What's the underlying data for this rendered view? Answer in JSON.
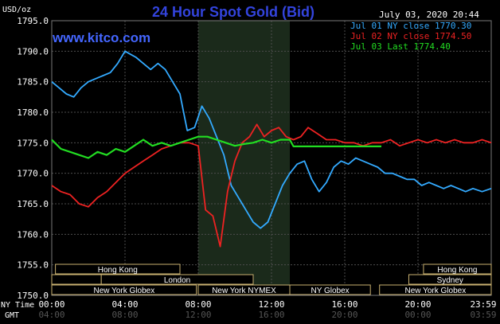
{
  "header": {
    "currency": "USD/oz",
    "title": "24 Hour Spot Gold (Bid)",
    "date": "July 03, 2020 20:44",
    "site": "www.kitco.com"
  },
  "legend": [
    {
      "label": "Jul 01 NY close 1770.30",
      "color": "#33aaff"
    },
    {
      "label": "Jul 02 NY close 1774.50",
      "color": "#ee2222"
    },
    {
      "label": "Jul 03 Last 1774.40",
      "color": "#22dd22"
    }
  ],
  "axis_labels": {
    "ny_time": "NY Time",
    "gmt": "GMT"
  },
  "sessions": {
    "row1": [
      "Hong Kong",
      "Hong Kong"
    ],
    "row2": [
      "London",
      "Sydney"
    ],
    "row3": [
      "New York Globex",
      "New York NYMEX",
      "NY Globex",
      "New York Globex"
    ]
  },
  "colors": {
    "background": "#000000",
    "grid": "#4d4d4d",
    "highlight": "#1b2a1b",
    "title": "#3344dd",
    "site": "#4466ff",
    "session_border": "#c8b070",
    "text": "#ffffff"
  },
  "chart_data": {
    "type": "line",
    "title": "24 Hour Spot Gold (Bid)",
    "xlabel": "NY Time",
    "ylabel": "USD/oz",
    "ylim": [
      1750,
      1795
    ],
    "xlim": [
      0,
      24
    ],
    "grid": true,
    "legend_position": "top-right",
    "yticks": [
      "1750.0",
      "1755.0",
      "1760.0",
      "1765.0",
      "1770.0",
      "1775.0",
      "1780.0",
      "1785.0",
      "1790.0",
      "1795.0"
    ],
    "xticks_ny": [
      "00:00",
      "04:00",
      "08:00",
      "12:00",
      "16:00",
      "20:00",
      "23:59"
    ],
    "xticks_gmt": [
      "04:00",
      "08:00",
      "12:00",
      "16:00",
      "20:00",
      "00:00",
      "03:59"
    ],
    "highlight_x": [
      8,
      13
    ],
    "series": [
      {
        "name": "Jul 01 NY close 1770.30",
        "color": "#33aaff",
        "x": [
          0,
          0.4,
          0.8,
          1.2,
          1.6,
          2,
          2.4,
          2.8,
          3.2,
          3.6,
          4,
          4.3,
          4.6,
          5,
          5.4,
          5.8,
          6.2,
          6.6,
          7,
          7.4,
          7.8,
          8.2,
          8.6,
          9,
          9.4,
          9.8,
          10.2,
          10.6,
          11,
          11.4,
          11.8,
          12.2,
          12.6,
          13,
          13.4,
          13.8,
          14.2,
          14.6,
          15,
          15.4,
          15.8,
          16.2,
          16.6,
          17,
          17.4,
          17.8,
          18.2,
          18.6,
          19,
          19.4,
          19.8,
          20.2,
          20.6,
          21,
          21.4,
          21.8,
          22.2,
          22.6,
          23,
          23.5,
          24
        ],
        "y": [
          1785,
          1784,
          1783,
          1782.5,
          1784,
          1785,
          1785.5,
          1786,
          1786.5,
          1788,
          1790,
          1789.5,
          1789,
          1788,
          1787,
          1788,
          1787,
          1785,
          1783,
          1777,
          1777.5,
          1781,
          1779,
          1776,
          1773,
          1768,
          1766,
          1764,
          1762,
          1761,
          1762,
          1765,
          1768,
          1770,
          1771.5,
          1772,
          1769,
          1767,
          1768.5,
          1771,
          1772,
          1771.5,
          1772.5,
          1772,
          1771.5,
          1771,
          1770,
          1770,
          1769.5,
          1769,
          1769,
          1768,
          1768.5,
          1768,
          1767.5,
          1768,
          1767.5,
          1767,
          1767.5,
          1767,
          1767.5
        ]
      },
      {
        "name": "Jul 02 NY close 1774.50",
        "color": "#ee2222",
        "x": [
          0,
          0.5,
          1,
          1.5,
          2,
          2.5,
          3,
          3.5,
          4,
          4.5,
          5,
          5.5,
          6,
          6.5,
          7,
          7.5,
          8,
          8.4,
          8.8,
          9.2,
          9.6,
          10,
          10.4,
          10.8,
          11.2,
          11.6,
          12,
          12.4,
          12.8,
          13.2,
          13.6,
          14,
          14.5,
          15,
          15.5,
          16,
          16.5,
          17,
          17.5,
          18,
          18.5,
          19,
          19.5,
          20,
          20.5,
          21,
          21.5,
          22,
          22.5,
          23,
          23.5,
          24
        ],
        "y": [
          1768,
          1767,
          1766.5,
          1765,
          1764.5,
          1766,
          1767,
          1768.5,
          1770,
          1771,
          1772,
          1773,
          1774,
          1774.5,
          1775,
          1775,
          1774.5,
          1764,
          1763,
          1758,
          1767,
          1772,
          1775,
          1776,
          1778,
          1776,
          1777,
          1777.5,
          1776,
          1775.5,
          1776,
          1777.5,
          1776.5,
          1775.5,
          1775.5,
          1775,
          1775,
          1774.5,
          1775,
          1775,
          1775.5,
          1774.5,
          1775,
          1775.5,
          1775,
          1775.5,
          1775,
          1775.5,
          1775,
          1775,
          1775.5,
          1775
        ]
      },
      {
        "name": "Jul 03 Last 1774.40",
        "color": "#22dd22",
        "x": [
          0,
          0.5,
          1,
          1.5,
          2,
          2.5,
          3,
          3.5,
          4,
          4.5,
          5,
          5.5,
          6,
          6.5,
          7,
          7.5,
          8,
          8.5,
          9,
          9.5,
          10,
          10.5,
          11,
          11.5,
          12,
          12.5,
          13,
          13.2,
          14,
          15,
          16,
          17,
          18
        ],
        "y": [
          1775.5,
          1774,
          1773.5,
          1773,
          1772.5,
          1773.5,
          1773,
          1774,
          1773.5,
          1774.5,
          1775.5,
          1774.5,
          1775,
          1774.5,
          1775,
          1775.5,
          1776,
          1776,
          1775.5,
          1775,
          1774.5,
          1774.8,
          1775,
          1775.5,
          1775,
          1775.5,
          1775.5,
          1774.4,
          1774.4,
          1774.4,
          1774.4,
          1774.4,
          1774.4
        ]
      }
    ]
  }
}
